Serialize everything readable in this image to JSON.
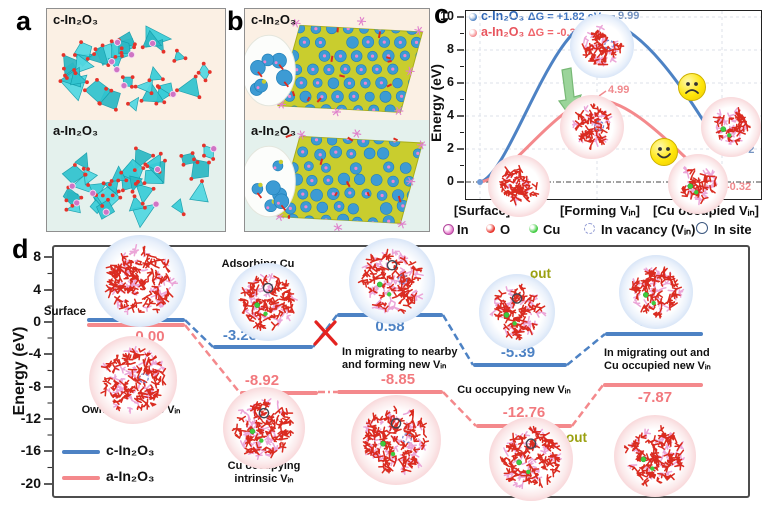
{
  "chart_data": [
    {
      "id": "panel_c",
      "type": "line",
      "ylabel": "Energy (eV)",
      "ylim": [
        -1.8,
        10.8
      ],
      "yticks": [
        0,
        2,
        4,
        6,
        8,
        10
      ],
      "grid": true,
      "legend_position": "top-left",
      "categories": [
        "[Surface]",
        "[Forming Vᵢₙ]",
        "[Cu occupied Vᵢₙ]"
      ],
      "series": [
        {
          "name": "c-In₂O₃",
          "delta_g": "ΔG = +1.82 eV",
          "color": "#4d82c4",
          "values": [
            0,
            9.99,
            1.82
          ]
        },
        {
          "name": "a-In₂O₃",
          "delta_g": "ΔG = -0.32 eV",
          "color": "#f4898c",
          "values": [
            0,
            4.99,
            -0.32
          ]
        }
      ],
      "annotations": [
        "9.99",
        "4.99",
        "1.82",
        "-0.32"
      ],
      "atom_legend": [
        "In",
        "O",
        "Cu",
        "In vacancy (Vᵢₙ)",
        "In site"
      ]
    },
    {
      "id": "panel_d",
      "type": "line",
      "subtype": "energy-profile",
      "ylabel": "Energy (eV)",
      "ylim": [
        -21,
        9
      ],
      "yticks": [
        8,
        4,
        0,
        -4,
        -8,
        -12,
        -16,
        -20
      ],
      "legend_position": "bottom-left",
      "stages": [
        "Surface",
        "Adsorbing Cu",
        "In migrating to nearby and forming new Vᵢₙ",
        "Cu occupying new Vᵢₙ",
        "In migrating out and Cu occupied new Vᵢₙ"
      ],
      "series": [
        {
          "name": "c-In₂O₃",
          "color": "#4d82c4",
          "values": [
            0.0,
            -3.28,
            0.58,
            -5.39,
            -1.77
          ]
        },
        {
          "name": "a-In₂O₃",
          "color": "#f4898c",
          "values": [
            0.0,
            -8.92,
            -8.85,
            -12.76,
            -7.87
          ]
        }
      ],
      "a_series_stage_notes": [
        "Owned intrinsic Vᵢₙ",
        "Cu occupying intrinsic Vᵢₙ",
        "Cu occupying new Vᵢₙ"
      ]
    }
  ],
  "labels": {
    "a": "a",
    "b": "b",
    "c": "c",
    "d": "d"
  },
  "panel_a": {
    "top": "c-In₂O₃",
    "bottom": "a-In₂O₃"
  },
  "panel_b": {
    "top": "c-In₂O₃",
    "bottom": "a-In₂O₃"
  },
  "panel_c": {
    "ylabel": "Energy (eV)",
    "yticks": [
      "10",
      "8",
      "6",
      "4",
      "2",
      "0"
    ],
    "xlabels": [
      "[Surface]",
      "[Forming Vᵢₙ]",
      "[Cu occupied Vᵢₙ]"
    ],
    "legend": [
      {
        "name": "c-In₂O₃",
        "dg": "ΔG = +1.82 eV"
      },
      {
        "name": "a-In₂O₃",
        "dg": "ΔG = -0.32 eV"
      }
    ],
    "point_labels": {
      "blue_peak": "9.99",
      "red_peak": "4.99",
      "blue_end": "1.82",
      "red_end": "-0.32"
    },
    "atom_legend": {
      "in": "In",
      "o": "O",
      "cu": "Cu",
      "vacancy": "In vacancy (Vᵢₙ)",
      "site": "In site"
    }
  },
  "panel_d": {
    "ylabel": "Energy (eV)",
    "yticks": [
      "8",
      "4",
      "0",
      "-4",
      "-8",
      "-12",
      "-16",
      "-20"
    ],
    "surface": "Surface",
    "legend": [
      {
        "name": "c-In₂O₃"
      },
      {
        "name": "a-In₂O₃"
      }
    ],
    "blue": [
      "0.00",
      "-3.28",
      "0.58",
      "-5.39",
      "-1.77"
    ],
    "red": [
      "0.00",
      "-8.92",
      "-8.85",
      "-12.76",
      "-7.87"
    ],
    "ann": {
      "adsorbing": "Adsorbing Cu",
      "owned": "Owned intrinsic Vᵢₙ",
      "mig1a": "In migrating to nearby",
      "mig1b": "and forming new Vᵢₙ",
      "cuint_a": "Cu occupying",
      "cuint_b": "intrinsic Vᵢₙ",
      "cunew": "Cu occupying new Vᵢₙ",
      "mig2a": "In migrating out and",
      "mig2b": "Cu occupied new Vᵢₙ",
      "out": "out"
    }
  }
}
